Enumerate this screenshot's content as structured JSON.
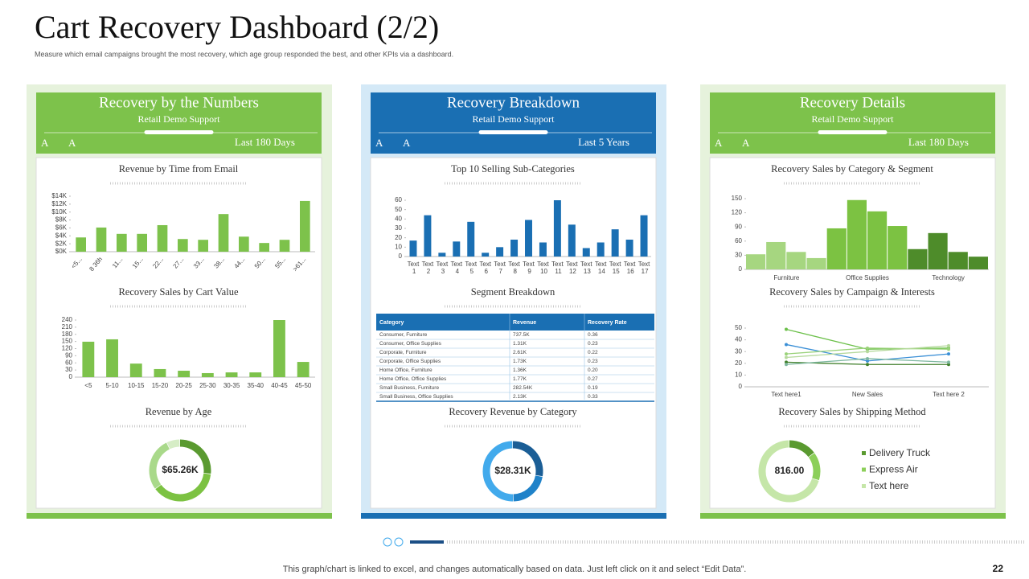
{
  "header": {
    "title": "Cart Recovery Dashboard (2/2)",
    "subtitle": "Measure which email campaigns brought the most recovery, which age group responded the best, and other KPIs  via a dashboard."
  },
  "panels": [
    {
      "title": "Recovery by the Numbers",
      "subtitle": "Retail Demo Support",
      "font_controls": [
        "A",
        "A"
      ],
      "period": "Last 180 Days"
    },
    {
      "title": "Recovery Breakdown",
      "subtitle": "Retail Demo Support",
      "font_controls": [
        "A",
        "A"
      ],
      "period": "Last 5 Years"
    },
    {
      "title": "Recovery Details",
      "subtitle": "Retail Demo Support",
      "font_controls": [
        "A",
        "A"
      ],
      "period": "Last 180 Days"
    }
  ],
  "chart_data": [
    {
      "type": "bar",
      "title": "Revenue  by Time from Email",
      "categories": [
        "<5...",
        "8 36h",
        "11...",
        "15...",
        "22...",
        "27...",
        "33...",
        "38...",
        "44...",
        "50...",
        "55...",
        ">61..."
      ],
      "values": [
        3.6,
        6.1,
        4.5,
        4.5,
        6.7,
        3.2,
        3.0,
        9.5,
        3.8,
        2.2,
        3.0,
        12.8
      ],
      "color": "#7dc24b",
      "ylim": [
        0,
        14
      ],
      "yticks": [
        {
          "value": 0,
          "label": "$0K"
        },
        {
          "value": 2,
          "label": "$2K"
        },
        {
          "value": 4,
          "label": "$4K"
        },
        {
          "value": 6,
          "label": "$6K"
        },
        {
          "value": 8,
          "label": "$8K"
        },
        {
          "value": 10,
          "label": "$10K"
        },
        {
          "value": 12,
          "label": "$12K"
        },
        {
          "value": 14,
          "label": "$14K"
        }
      ]
    },
    {
      "type": "bar",
      "title": "Recovery  Sales by Cart Value",
      "categories": [
        "<5",
        "5-10",
        "10-15",
        "15-20",
        "20-25",
        "25-30",
        "30-35",
        "35-40",
        "40-45",
        "45-50"
      ],
      "values": [
        149,
        159,
        57,
        34,
        27,
        17,
        20,
        20,
        240,
        64
      ],
      "color": "#7dc24b",
      "ylim": [
        0,
        240
      ],
      "yticks": [
        0,
        30,
        60,
        90,
        120,
        150,
        180,
        210,
        240
      ]
    },
    {
      "type": "donut",
      "title": "Revenue  by Age",
      "center_label": "$65.26K",
      "values": [
        27,
        38,
        28,
        7
      ],
      "colors": [
        "#5a9a30",
        "#7cc242",
        "#a9d98a",
        "#d6edc6"
      ]
    },
    {
      "type": "bar",
      "title": "Top 10 Selling Sub-Categories",
      "categories": [
        "Text 1",
        "Text 2",
        "Text 3",
        "Text 4",
        "Text 5",
        "Text 6",
        "Text 7",
        "Text 8",
        "Text 9",
        "Text 10",
        "Text 11",
        "Text 12",
        "Text 13",
        "Text 14",
        "Text 15",
        "Text 16",
        "Text 17"
      ],
      "values": [
        17,
        44,
        4,
        16,
        37,
        4,
        10,
        18,
        39,
        15,
        60,
        34,
        9,
        15,
        29,
        18,
        44
      ],
      "color": "#1a6fb3",
      "ylim": [
        0,
        60
      ],
      "yticks": [
        0,
        10,
        20,
        30,
        40,
        50,
        60
      ]
    },
    {
      "type": "donut",
      "title": "Recovery  Revenue by Category",
      "center_label": "$28.31K",
      "values": [
        28,
        22,
        50
      ],
      "colors": [
        "#1b5e96",
        "#1f82c9",
        "#42aaec"
      ]
    },
    {
      "type": "grouped_bar",
      "title": "Recovery  Sales by Category & Segment",
      "categories": [
        "Furniture",
        "Office Supplies",
        "Technology"
      ],
      "colors": [
        "#a6d680",
        "#7cc242",
        "#4e8c2a"
      ],
      "series": [
        {
          "values": [
            32,
            87,
            43
          ]
        },
        {
          "values": [
            58,
            147,
            77
          ]
        },
        {
          "values": [
            37,
            123,
            37
          ]
        },
        {
          "values": [
            24,
            92,
            27
          ]
        }
      ],
      "ylim": [
        0,
        150
      ],
      "yticks": [
        0,
        30,
        60,
        90,
        120,
        150
      ]
    },
    {
      "type": "line",
      "title": "Recovery  Sales by Campaign & Interests",
      "categories": [
        "Text here1",
        "New Sales",
        "Text here 2"
      ],
      "series": [
        {
          "color": "#6cc04a",
          "values": [
            49,
            32,
            33
          ]
        },
        {
          "color": "#3a8fd6",
          "values": [
            36,
            22,
            28
          ]
        },
        {
          "color": "#9ad27a",
          "values": [
            28,
            33,
            32
          ]
        },
        {
          "color": "#b5d99c",
          "values": [
            25,
            30,
            35
          ]
        },
        {
          "color": "#3f7f2a",
          "values": [
            21,
            19,
            19
          ]
        },
        {
          "color": "#7fb8a0",
          "values": [
            19,
            24,
            21
          ]
        }
      ],
      "ylim": [
        0,
        50
      ],
      "yticks": [
        0,
        10,
        20,
        30,
        40,
        50
      ]
    },
    {
      "type": "donut",
      "title": "Recovery  Sales by Shipping Method",
      "center_label": "816.00",
      "categories": [
        "Delivery Truck",
        "Express Air",
        "Text here"
      ],
      "values": [
        15,
        15,
        70
      ],
      "colors": [
        "#5a9a30",
        "#8ccf5a",
        "#c5e6a8"
      ]
    }
  ],
  "table": {
    "title": "Segment Breakdown",
    "columns": [
      "Category",
      "Revenue",
      "Recovery Rate"
    ],
    "rows": [
      [
        "Consumer, Furniture",
        "737.5K",
        "0.36"
      ],
      [
        "Consumer, Office Supplies",
        "1.31K",
        "0.23"
      ],
      [
        "Corporate, Furniture",
        "2.61K",
        "0.22"
      ],
      [
        "Corporate, Office Supplies",
        "1.73K",
        "0.23"
      ],
      [
        "Home Office, Furniture",
        "1.36K",
        "0.20"
      ],
      [
        "Home Office, Office Supplies",
        "1.77K",
        "0.27"
      ],
      [
        "Small Business, Furniture",
        "282.54K",
        "0.19"
      ],
      [
        "Small Business, Office Supplies",
        "2.13K",
        "0.33"
      ]
    ]
  },
  "footer": {
    "note": "This graph/chart is linked to excel, and changes automatically based on data. Just left click on it and select “Edit Data”.",
    "page": 22
  }
}
